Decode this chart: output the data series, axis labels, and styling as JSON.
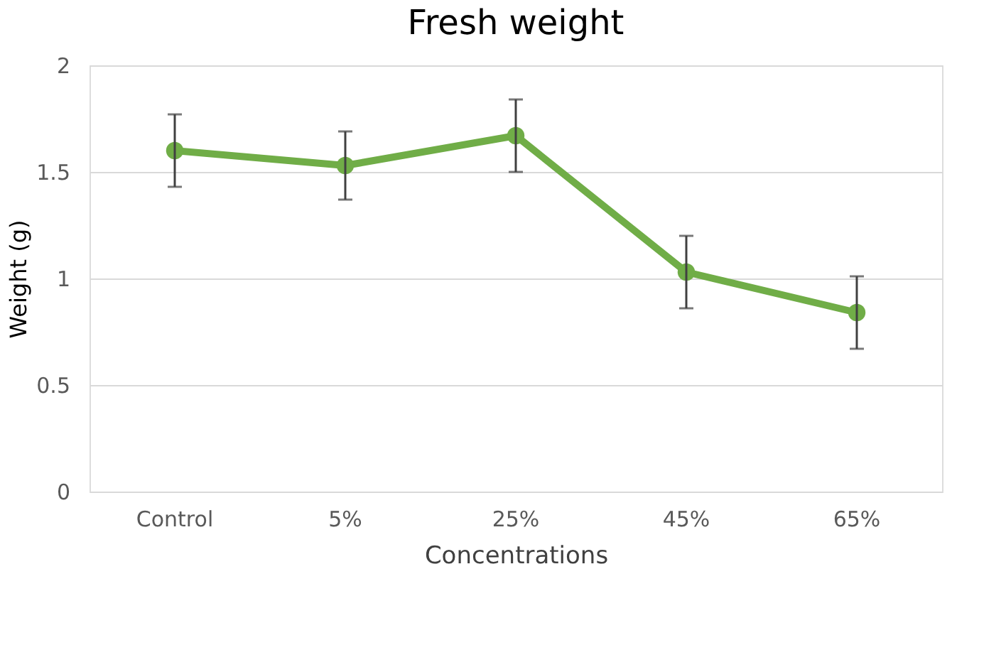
{
  "chart_data": {
    "type": "line",
    "title": "Fresh weight",
    "xlabel": "Concentrations",
    "ylabel": "Weight (g)",
    "categories": [
      "Control",
      "5%",
      "25%",
      "45%",
      "65%"
    ],
    "series": [
      {
        "color": "#70ad47",
        "values": [
          1.6,
          1.53,
          1.67,
          1.03,
          0.84
        ],
        "errors": [
          0.17,
          0.16,
          0.17,
          0.17,
          0.17
        ]
      }
    ],
    "ylim": [
      0,
      2
    ],
    "yticks": [
      0,
      0.5,
      1,
      1.5,
      2
    ],
    "grid": "y",
    "marker": "circle",
    "line_style": "solid",
    "legend": false
  }
}
